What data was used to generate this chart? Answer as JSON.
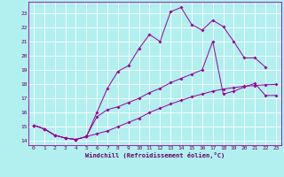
{
  "xlabel": "Windchill (Refroidissement éolien,°C)",
  "bg_color": "#b2efef",
  "grid_color": "#ffffff",
  "line_color": "#990099",
  "xlim": [
    -0.5,
    23.5
  ],
  "ylim": [
    13.7,
    23.8
  ],
  "ytick_vals": [
    14,
    15,
    16,
    17,
    18,
    19,
    20,
    21,
    22,
    23
  ],
  "xtick_vals": [
    0,
    1,
    2,
    3,
    4,
    5,
    6,
    7,
    8,
    9,
    10,
    11,
    12,
    13,
    14,
    15,
    16,
    17,
    18,
    19,
    20,
    21,
    22,
    23
  ],
  "line1_x": [
    0,
    1,
    2,
    3,
    4,
    5,
    6,
    7,
    8,
    9,
    10,
    11,
    12,
    13,
    14,
    15,
    16,
    17,
    18,
    19,
    20,
    21,
    22
  ],
  "line1_y": [
    15.1,
    14.85,
    14.4,
    14.2,
    14.1,
    14.3,
    16.0,
    17.7,
    18.9,
    19.3,
    20.5,
    21.5,
    21.0,
    23.1,
    23.4,
    22.2,
    21.8,
    22.5,
    22.05,
    21.0,
    19.85,
    19.85,
    19.2
  ],
  "line2_x": [
    0,
    1,
    2,
    3,
    4,
    5,
    6,
    7,
    8,
    9,
    10,
    11,
    12,
    13,
    14,
    15,
    16,
    17,
    18,
    19,
    20,
    21,
    22,
    23
  ],
  "line2_y": [
    15.1,
    14.85,
    14.4,
    14.2,
    14.1,
    14.3,
    14.5,
    14.7,
    15.0,
    15.3,
    15.6,
    16.0,
    16.3,
    16.6,
    16.85,
    17.1,
    17.3,
    17.5,
    17.65,
    17.75,
    17.85,
    17.9,
    17.95,
    17.98
  ],
  "line3_x": [
    0,
    1,
    2,
    3,
    4,
    5,
    6,
    7,
    8,
    9,
    10,
    11,
    12,
    13,
    14,
    15,
    16,
    17,
    18,
    19,
    20,
    21,
    22,
    23
  ],
  "line3_y": [
    15.1,
    14.85,
    14.4,
    14.2,
    14.1,
    14.3,
    15.7,
    16.2,
    16.4,
    16.7,
    17.0,
    17.4,
    17.7,
    18.1,
    18.4,
    18.7,
    19.0,
    21.0,
    17.3,
    17.5,
    17.8,
    18.05,
    17.2,
    17.2
  ]
}
